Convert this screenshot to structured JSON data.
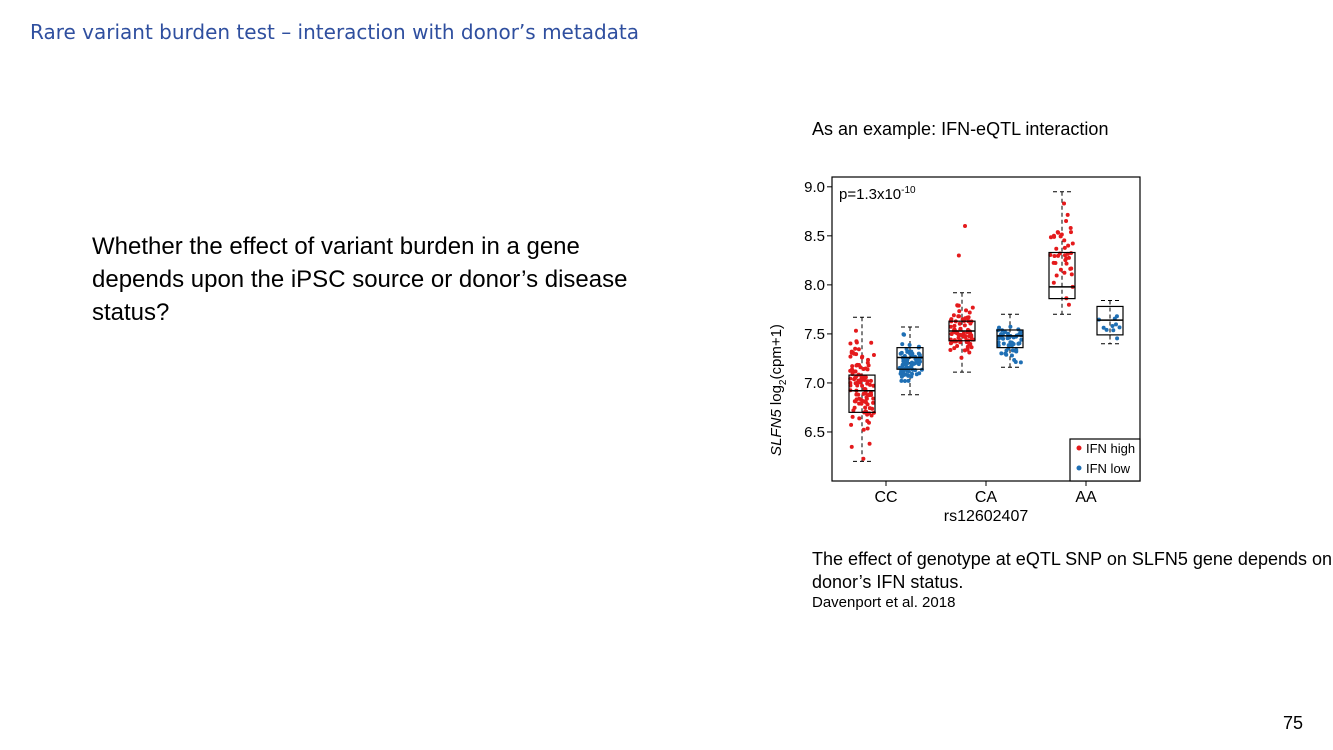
{
  "slide": {
    "title": "Rare variant burden test – interaction with donor’s metadata",
    "body_text": "Whether the effect of variant burden in a gene depends upon the iPSC source or donor’s disease status?",
    "example_title": "As an example: IFN-eQTL interaction",
    "caption": "The effect of genotype at eQTL SNP on SLFN5 gene depends on donor’s IFN status.",
    "citation": "Davenport et al. 2018",
    "page_number": "75"
  },
  "chart_data": {
    "type": "box",
    "pvalue_base": "p=1.3x10",
    "pvalue_exp": "-10",
    "ylabel_gene": "SLFN5",
    "ylabel_rest": " log",
    "ylabel_sub": "2",
    "ylabel_tail": "(cpm+1)",
    "xlabel": "rs12602407",
    "categories": [
      "CC",
      "CA",
      "AA"
    ],
    "ylim": [
      6.0,
      9.1
    ],
    "yticks": [
      6.5,
      7.0,
      7.5,
      8.0,
      8.5,
      9.0
    ],
    "ytick_labels": [
      "6.5",
      "7.0",
      "7.5",
      "8.0",
      "8.5",
      "9.0"
    ],
    "legend_position": "bottom-right",
    "series": [
      {
        "name": "IFN high",
        "color": "#e41a1c",
        "boxes": [
          {
            "category": "CC",
            "min": 6.2,
            "q1": 6.7,
            "median": 6.92,
            "q3": 7.08,
            "max": 7.67,
            "n": 110
          },
          {
            "category": "CA",
            "min": 7.11,
            "q1": 7.43,
            "median": 7.53,
            "q3": 7.63,
            "max": 7.92,
            "n": 80,
            "outliers": [
              8.6,
              8.3
            ]
          },
          {
            "category": "AA",
            "min": 7.7,
            "q1": 7.86,
            "median": 7.98,
            "q3": 8.33,
            "max": 8.95,
            "n": 40
          }
        ]
      },
      {
        "name": "IFN low",
        "color": "#1f6fb4",
        "boxes": [
          {
            "category": "CC",
            "min": 6.88,
            "q1": 7.14,
            "median": 7.26,
            "q3": 7.36,
            "max": 7.57,
            "n": 80
          },
          {
            "category": "CA",
            "min": 7.16,
            "q1": 7.36,
            "median": 7.48,
            "q3": 7.54,
            "max": 7.7,
            "n": 50
          },
          {
            "category": "AA",
            "min": 7.4,
            "q1": 7.49,
            "median": 7.64,
            "q3": 7.78,
            "max": 7.84,
            "n": 10
          }
        ]
      }
    ]
  }
}
